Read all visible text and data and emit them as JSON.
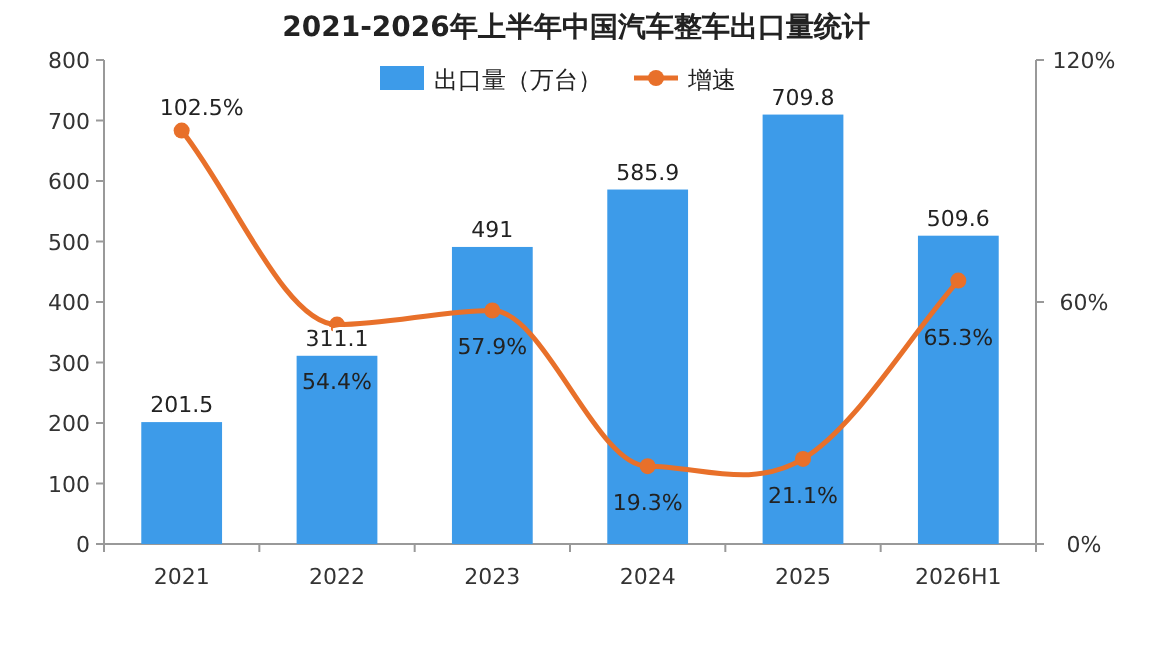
{
  "chart_data": {
    "type": "bar",
    "title": "2021-2026年上半年中国汽车整车出口量统计",
    "categories": [
      "2021",
      "2022",
      "2023",
      "2024",
      "2025",
      "2026H1"
    ],
    "series": [
      {
        "name": "出口量（万台）",
        "color": "#3d9be9",
        "values": [
          201.5,
          311.1,
          491,
          585.9,
          709.8,
          509.6
        ],
        "value_labels": [
          "201.5",
          "311.1",
          "491",
          "585.9",
          "709.8",
          "509.6"
        ]
      },
      {
        "name": "增速",
        "type": "line",
        "axis": "y2",
        "color": "#e8702a",
        "marker": "circle",
        "values": [
          102.5,
          54.4,
          57.9,
          19.3,
          21.1,
          65.3
        ],
        "value_labels": [
          "102.5%",
          "54.4%",
          "57.9%",
          "19.3%",
          "21.1%",
          "65.3%"
        ]
      }
    ],
    "ylim": [
      0,
      800
    ],
    "yticks": [
      0,
      100,
      200,
      300,
      400,
      500,
      600,
      700,
      800
    ],
    "y2lim": [
      0,
      120
    ],
    "y2ticks": [
      {
        "value": 0,
        "label": "0%"
      },
      {
        "value": 60,
        "label": "60%"
      },
      {
        "value": 120,
        "label": "120%"
      }
    ],
    "grid": false,
    "legend": "top"
  }
}
